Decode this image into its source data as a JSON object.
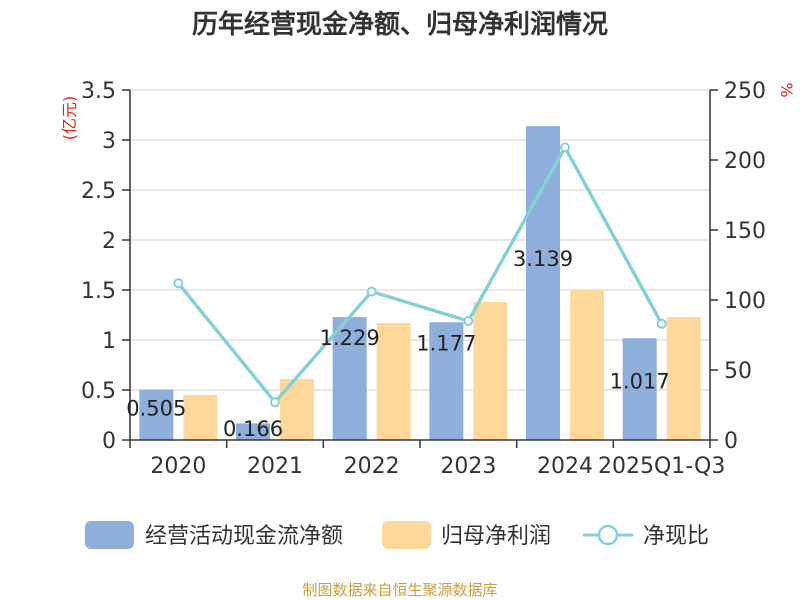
{
  "chart_data": {
    "type": "bar",
    "title": "历年经营现金净额、归母净利润情况",
    "categories": [
      "2020",
      "2021",
      "2022",
      "2023",
      "2024",
      "2025Q1-Q3"
    ],
    "left_axis": {
      "unit": "(亿元)",
      "ylim": [
        0,
        3.5
      ],
      "ticks": [
        "0",
        "0.5",
        "1",
        "1.5",
        "2",
        "2.5",
        "3",
        "3.5"
      ]
    },
    "right_axis": {
      "unit": "%",
      "ylim": [
        0,
        250
      ],
      "ticks": [
        "0",
        "50",
        "100",
        "150",
        "200",
        "250"
      ]
    },
    "grid": true,
    "legend_position": "bottom",
    "series": [
      {
        "name": "经营活动现金流净额",
        "type": "bar",
        "axis": "left",
        "color": "#8eaedb",
        "values": [
          0.505,
          0.166,
          1.229,
          1.177,
          3.139,
          1.017
        ],
        "labels": [
          "0.505",
          "0.166",
          "1.229",
          "1.177",
          "3.139",
          "1.017"
        ]
      },
      {
        "name": "归母净利润",
        "type": "bar",
        "axis": "left",
        "color": "#fdd89a",
        "values": [
          0.45,
          0.61,
          1.17,
          1.38,
          1.5,
          1.23
        ]
      },
      {
        "name": "净现比",
        "type": "line",
        "axis": "right",
        "color": "#86d0d4",
        "values": [
          112,
          27,
          106,
          85,
          209,
          83
        ]
      }
    ],
    "source": "制图数据来自恒生聚源数据库"
  }
}
